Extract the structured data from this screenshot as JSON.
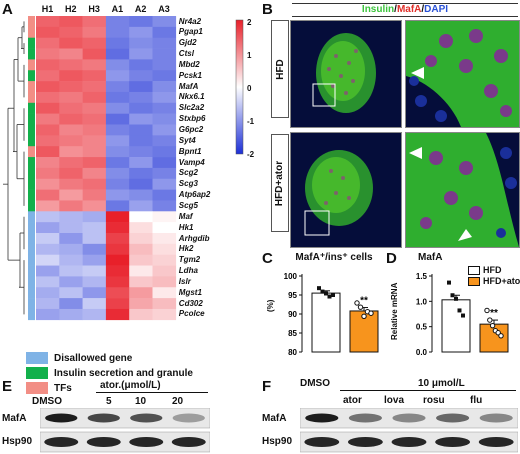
{
  "panels": {
    "a": "A",
    "b": "B",
    "c": "C",
    "d": "D",
    "e": "E",
    "f": "F"
  },
  "heatmap": {
    "columns": [
      "H1",
      "H2",
      "H3",
      "A1",
      "A2",
      "A3"
    ],
    "genes": [
      "Nr4a2",
      "Pgap1",
      "Gjd2",
      "Ctsl",
      "Mbd2",
      "Pcsk1",
      "MafA",
      "Nkx6.1",
      "Slc2a2",
      "Stxbp6",
      "G6pc2",
      "Syt4",
      "Bpnt1",
      "Vamp4",
      "Scg2",
      "Scg3",
      "Atp6ap2",
      "Scg5",
      "Maf",
      "Hk1",
      "Arhgdib",
      "Hk2",
      "Tgm2",
      "Ldha",
      "Islr",
      "Mgst1",
      "Cd302",
      "Pcolce"
    ],
    "annotation": [
      "tf",
      "tf",
      "green",
      "green",
      "tf",
      "green",
      "tf",
      "tf",
      "green",
      "green",
      "green",
      "green",
      "tf",
      "green",
      "green",
      "green",
      "green",
      "green",
      "blue",
      "blue",
      "blue",
      "blue",
      "blue",
      "blue",
      "blue",
      "blue",
      "blue",
      "blue"
    ],
    "values": [
      [
        1.4,
        1.5,
        1.3,
        -1.2,
        -1.3,
        -1.1
      ],
      [
        1.5,
        1.4,
        1.2,
        -1.2,
        -1.0,
        -1.3
      ],
      [
        1.3,
        1.5,
        1.4,
        -1.3,
        -1.1,
        -1.2
      ],
      [
        1.2,
        1.1,
        1.5,
        -1.4,
        -1.0,
        -1.2
      ],
      [
        1.4,
        1.3,
        1.2,
        -1.1,
        -1.3,
        -1.2
      ],
      [
        1.3,
        1.5,
        1.4,
        -1.0,
        -1.2,
        -1.3
      ],
      [
        1.5,
        1.4,
        1.3,
        -1.2,
        -1.4,
        -1.1
      ],
      [
        1.3,
        1.2,
        1.4,
        -1.3,
        -1.2,
        -1.0
      ],
      [
        1.5,
        1.3,
        1.2,
        -1.1,
        -1.3,
        -1.2
      ],
      [
        1.2,
        1.4,
        1.3,
        -1.4,
        -1.0,
        -1.1
      ],
      [
        1.4,
        1.1,
        1.2,
        -1.2,
        -1.3,
        -1.0
      ],
      [
        1.3,
        1.2,
        1.1,
        -1.0,
        -1.3,
        -1.2
      ],
      [
        1.5,
        1.0,
        1.1,
        -1.1,
        -1.2,
        -1.3
      ],
      [
        1.1,
        1.3,
        1.4,
        -1.3,
        -1.0,
        -1.4
      ],
      [
        1.2,
        1.4,
        1.1,
        -1.1,
        -1.3,
        -1.2
      ],
      [
        1.0,
        1.2,
        1.3,
        -1.2,
        -1.4,
        -1.0
      ],
      [
        1.3,
        0.9,
        1.2,
        -1.0,
        -1.1,
        -1.3
      ],
      [
        0.9,
        1.2,
        1.0,
        -1.3,
        -0.9,
        -1.2
      ],
      [
        -0.6,
        -0.7,
        -0.8,
        2.0,
        0.0,
        0.1
      ],
      [
        -0.9,
        -0.7,
        -0.6,
        1.9,
        0.3,
        0.0
      ],
      [
        -0.5,
        -1.0,
        -0.6,
        1.7,
        0.4,
        0.2
      ],
      [
        -0.7,
        -0.8,
        -1.1,
        1.8,
        0.6,
        0.3
      ],
      [
        -0.4,
        -0.7,
        -0.9,
        2.0,
        0.5,
        0.4
      ],
      [
        -0.9,
        -0.6,
        -0.5,
        1.9,
        0.2,
        0.5
      ],
      [
        -0.6,
        -0.9,
        -0.7,
        1.8,
        0.5,
        0.6
      ],
      [
        -0.8,
        -0.6,
        -1.0,
        1.6,
        0.9,
        0.2
      ],
      [
        -0.7,
        -1.1,
        -0.5,
        1.7,
        0.8,
        0.6
      ],
      [
        -0.9,
        -0.8,
        -0.7,
        1.9,
        0.5,
        0.4
      ]
    ],
    "colorbar": {
      "ticks": [
        "2",
        "1",
        "0",
        "-1",
        "-2"
      ],
      "max_color": "#e8202a",
      "mid_color": "#ffffff",
      "min_color": "#1c2fd6"
    },
    "legend": [
      {
        "label": "Disallowed gene",
        "color": "#7fb3e6"
      },
      {
        "label": "Insulin secretion and granule",
        "color": "#12b04b"
      },
      {
        "label": "TFs",
        "color": "#f28e85"
      }
    ]
  },
  "panel_b": {
    "title_parts": [
      {
        "text": "Insulin",
        "color": "#3cc43c"
      },
      {
        "text": "/",
        "color": "#111111"
      },
      {
        "text": "MafA",
        "color": "#e0302a"
      },
      {
        "text": "/",
        "color": "#111111"
      },
      {
        "text": "DAPI",
        "color": "#2a52d6"
      }
    ],
    "rows": [
      "HFD",
      "HFD+ator"
    ]
  },
  "panel_c": {
    "title": "MafA⁺/ins⁺ cells",
    "ylabel": "(%)",
    "yticks": [
      "100",
      "95",
      "90",
      "85",
      "80"
    ],
    "significance": "**",
    "chart_data": {
      "type": "bar",
      "categories": [
        "HFD",
        "HFD+ator"
      ],
      "values": [
        95.5,
        90.8
      ],
      "errors": [
        0.6,
        0.9
      ],
      "points": [
        [
          96.8,
          95.9,
          95.4,
          94.6,
          95.0
        ],
        [
          92.9,
          91.8,
          89.4,
          90.6,
          90.2
        ]
      ],
      "ylim": [
        80,
        100
      ],
      "colors": [
        "#ffffff",
        "#f7941d"
      ]
    }
  },
  "panel_d": {
    "title": "MafA",
    "ylabel": "Relative mRNA",
    "yticks": [
      "1.5",
      "1.0",
      "0.5",
      "0.0"
    ],
    "significance": "**",
    "legend": [
      {
        "label": "HFD",
        "color": "#ffffff"
      },
      {
        "label": "HFD+ator",
        "color": "#f7941d"
      }
    ],
    "chart_data": {
      "type": "bar",
      "categories": [
        "HFD",
        "HFD+ator"
      ],
      "values": [
        1.03,
        0.55
      ],
      "errors": [
        0.09,
        0.08
      ],
      "points": [
        [
          1.37,
          1.12,
          1.05,
          0.82,
          0.72
        ],
        [
          0.82,
          0.63,
          0.52,
          0.42,
          0.38,
          0.32
        ]
      ],
      "ylim": [
        0,
        1.5
      ],
      "colors": [
        "#ffffff",
        "#f7941d"
      ]
    }
  },
  "panel_e": {
    "header_unit": "ator.(μmol/L)",
    "lanes": [
      "DMSO",
      "5",
      "10",
      "20"
    ],
    "rows": [
      "MafA",
      "Hsp90"
    ],
    "mafa_intensity": [
      0.95,
      0.75,
      0.7,
      0.35
    ]
  },
  "panel_f": {
    "header_unit": "10 μmol/L",
    "lanes": [
      "DMSO",
      "ator",
      "lova",
      "rosu",
      "flu"
    ],
    "rows": [
      "MafA",
      "Hsp90"
    ],
    "mafa_intensity": [
      0.95,
      0.55,
      0.45,
      0.6,
      0.45
    ]
  }
}
